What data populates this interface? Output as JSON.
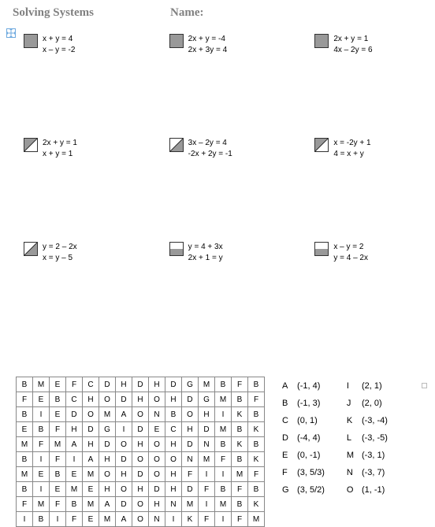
{
  "header": {
    "title": "Solving Systems",
    "name_label": "Name:"
  },
  "problems": [
    [
      {
        "fill": "full",
        "diag": false,
        "eq1": "x + y = 4",
        "eq2": "x – y = -2"
      },
      {
        "fill": "full",
        "diag": false,
        "eq1": "2x + y = -4",
        "eq2": "2x + 3y = 4"
      },
      {
        "fill": "full",
        "diag": false,
        "eq1": "2x + y = 1",
        "eq2": "4x – 2y = 6"
      }
    ],
    [
      {
        "fill": "tl",
        "diag": true,
        "eq1": "2x + y = 1",
        "eq2": "x + y = 1"
      },
      {
        "fill": "br",
        "diag": true,
        "eq1": "3x – 2y = 4",
        "eq2": "-2x + 2y = -1"
      },
      {
        "fill": "tl",
        "diag": true,
        "eq1": "x  =  -2y + 1",
        "eq2": "4 = x + y"
      }
    ],
    [
      {
        "fill": "br",
        "diag": true,
        "eq1": "y = 2 – 2x",
        "eq2": "x = y – 5"
      },
      {
        "fill": "bottom",
        "diag": false,
        "eq1": "y = 4 + 3x",
        "eq2": "2x + 1 = y"
      },
      {
        "fill": "bottom",
        "diag": false,
        "eq1": "x – y = 2",
        "eq2": "y = 4 – 2x"
      }
    ]
  ],
  "grid_rows": [
    [
      "B",
      "M",
      "E",
      "F",
      "C",
      "D",
      "H",
      "D",
      "H",
      "D",
      "G",
      "M",
      "B",
      "F",
      "B"
    ],
    [
      "F",
      "E",
      "B",
      "C",
      "H",
      "O",
      "D",
      "H",
      "O",
      "H",
      "D",
      "G",
      "M",
      "B",
      "F"
    ],
    [
      "B",
      "I",
      "E",
      "D",
      "O",
      "M",
      "A",
      "O",
      "N",
      "B",
      "O",
      "H",
      "I",
      "K",
      "B"
    ],
    [
      "E",
      "B",
      "F",
      "H",
      "D",
      "G",
      "I",
      "D",
      "E",
      "C",
      "H",
      "D",
      "M",
      "B",
      "K"
    ],
    [
      "M",
      "F",
      "M",
      "A",
      "H",
      "D",
      "O",
      "H",
      "O",
      "H",
      "D",
      "N",
      "B",
      "K",
      "B"
    ],
    [
      "B",
      "I",
      "F",
      "I",
      "A",
      "H",
      "D",
      "O",
      "O",
      "O",
      "N",
      "M",
      "F",
      "B",
      "K"
    ],
    [
      "M",
      "E",
      "B",
      "E",
      "M",
      "O",
      "H",
      "D",
      "O",
      "H",
      "F",
      "I",
      "I",
      "M",
      "F"
    ],
    [
      "B",
      "I",
      "E",
      "M",
      "E",
      "H",
      "O",
      "H",
      "D",
      "H",
      "D",
      "F",
      "B",
      "F",
      "B"
    ],
    [
      "F",
      "M",
      "F",
      "B",
      "M",
      "A",
      "D",
      "O",
      "H",
      "N",
      "M",
      "I",
      "M",
      "B",
      "K"
    ],
    [
      "I",
      "B",
      "I",
      "F",
      "E",
      "M",
      "A",
      "O",
      "N",
      "I",
      "K",
      "F",
      "I",
      "F",
      "M"
    ]
  ],
  "answers_left": [
    {
      "l": "A",
      "v": "(-1, 4)"
    },
    {
      "l": "B",
      "v": "(-1, 3)"
    },
    {
      "l": "C",
      "v": "(0, 1)"
    },
    {
      "l": "D",
      "v": "(-4, 4)"
    },
    {
      "l": "E",
      "v": "(0, -1)"
    },
    {
      "l": "F",
      "v": "(3, 5/3)"
    },
    {
      "l": "G",
      "v": "(3, 5/2)"
    }
  ],
  "answers_right": [
    {
      "l": "I",
      "v": "(2, 1)"
    },
    {
      "l": "J",
      "v": "(2, 0)"
    },
    {
      "l": "K",
      "v": "(-3, -4)"
    },
    {
      "l": "L",
      "v": "(-3, -5)"
    },
    {
      "l": "M",
      "v": "(-3, 1)"
    },
    {
      "l": "N",
      "v": "(-3, 7)"
    },
    {
      "l": "O",
      "v": "(1, -1)"
    }
  ]
}
